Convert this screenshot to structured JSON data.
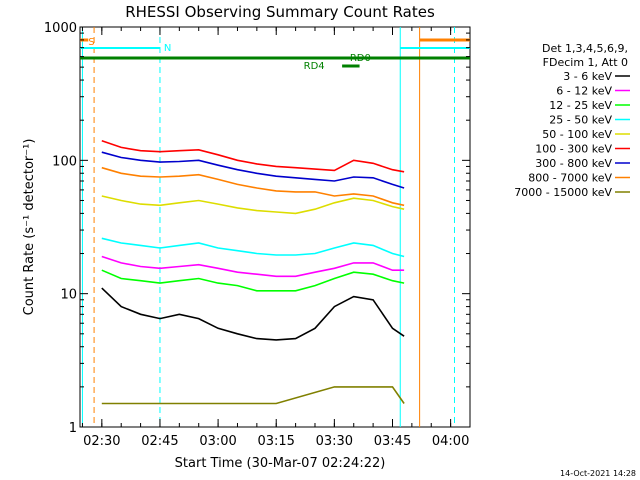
{
  "chart_data": {
    "type": "line",
    "title": "RHESSI Observing Summary Count Rates",
    "xlabel": "Start Time (30-Mar-07 02:24:22)",
    "ylabel": "Count Rate (s⁻¹ detector⁻¹)",
    "y_scale": "log",
    "ylim": [
      1,
      1000
    ],
    "xlim": [
      "02:24:22",
      "04:05:00"
    ],
    "x_ticks": [
      "02:30",
      "02:45",
      "03:00",
      "03:15",
      "03:30",
      "03:45",
      "04:00"
    ],
    "y_ticks": [
      "1",
      "10",
      "100",
      "1000"
    ],
    "timestamp": "14-Oct-2021 14:28",
    "legend": {
      "placement": "right",
      "header": [
        "Det 1,3,4,5,6,9,",
        "FDecim 1, Att 0"
      ]
    },
    "flags": [
      {
        "label": "S",
        "color": "#ff8000"
      },
      {
        "label": "N",
        "color": "#00ffff"
      },
      {
        "label": "RD0",
        "color": "#008000"
      },
      {
        "label": "RD4",
        "color": "#008000"
      }
    ],
    "series": [
      {
        "name": "3 - 6 keV",
        "color": "#000000",
        "x": [
          "02:30",
          "02:35",
          "02:40",
          "02:45",
          "02:50",
          "02:55",
          "03:00",
          "03:05",
          "03:10",
          "03:15",
          "03:20",
          "03:25",
          "03:30",
          "03:35",
          "03:40",
          "03:45",
          "03:48"
        ],
        "values": [
          11,
          8,
          7,
          6.5,
          7,
          6.5,
          5.5,
          5,
          4.6,
          4.5,
          4.6,
          5.5,
          8,
          9.5,
          9,
          5.5,
          4.8
        ]
      },
      {
        "name": "6 - 12 keV",
        "color": "#ff00ff",
        "x": [
          "02:30",
          "02:35",
          "02:40",
          "02:45",
          "02:50",
          "02:55",
          "03:00",
          "03:05",
          "03:10",
          "03:15",
          "03:20",
          "03:25",
          "03:30",
          "03:35",
          "03:40",
          "03:45",
          "03:48"
        ],
        "values": [
          19,
          17,
          16,
          15.5,
          16,
          16.5,
          15.5,
          14.5,
          14,
          13.5,
          13.5,
          14.5,
          15.5,
          17,
          17,
          15,
          15
        ]
      },
      {
        "name": "12 - 25 keV",
        "color": "#00ff00",
        "x": [
          "02:30",
          "02:35",
          "02:40",
          "02:45",
          "02:50",
          "02:55",
          "03:00",
          "03:05",
          "03:10",
          "03:15",
          "03:20",
          "03:25",
          "03:30",
          "03:35",
          "03:40",
          "03:45",
          "03:48"
        ],
        "values": [
          15,
          13,
          12.5,
          12,
          12.5,
          13,
          12,
          11.5,
          10.5,
          10.5,
          10.5,
          11.5,
          13,
          14.5,
          14,
          12.5,
          12
        ]
      },
      {
        "name": "25 - 50 keV",
        "color": "#00ffff",
        "x": [
          "02:30",
          "02:35",
          "02:40",
          "02:45",
          "02:50",
          "02:55",
          "03:00",
          "03:05",
          "03:10",
          "03:15",
          "03:20",
          "03:25",
          "03:30",
          "03:35",
          "03:40",
          "03:45",
          "03:48"
        ],
        "values": [
          26,
          24,
          23,
          22,
          23,
          24,
          22,
          21,
          20,
          19.5,
          19.5,
          20,
          22,
          24,
          23,
          20,
          19
        ]
      },
      {
        "name": "50 - 100 keV",
        "color": "#dddd00",
        "x": [
          "02:30",
          "02:35",
          "02:40",
          "02:45",
          "02:50",
          "02:55",
          "03:00",
          "03:05",
          "03:10",
          "03:15",
          "03:20",
          "03:25",
          "03:30",
          "03:35",
          "03:40",
          "03:45",
          "03:48"
        ],
        "values": [
          54,
          50,
          47,
          46,
          48,
          50,
          47,
          44,
          42,
          41,
          40,
          43,
          48,
          52,
          50,
          45,
          43
        ]
      },
      {
        "name": "100 - 300 keV",
        "color": "#ff0000",
        "x": [
          "02:30",
          "02:35",
          "02:40",
          "02:45",
          "02:50",
          "02:55",
          "03:00",
          "03:05",
          "03:10",
          "03:15",
          "03:20",
          "03:25",
          "03:30",
          "03:35",
          "03:40",
          "03:45",
          "03:48"
        ],
        "values": [
          140,
          125,
          118,
          116,
          118,
          120,
          110,
          100,
          94,
          90,
          88,
          86,
          84,
          100,
          95,
          85,
          82
        ]
      },
      {
        "name": "300 - 800 keV",
        "color": "#0000cc",
        "x": [
          "02:30",
          "02:35",
          "02:40",
          "02:45",
          "02:50",
          "02:55",
          "03:00",
          "03:05",
          "03:10",
          "03:15",
          "03:20",
          "03:25",
          "03:30",
          "03:35",
          "03:40",
          "03:45",
          "03:48"
        ],
        "values": [
          115,
          105,
          100,
          97,
          98,
          100,
          92,
          85,
          80,
          76,
          74,
          72,
          70,
          75,
          74,
          66,
          62
        ]
      },
      {
        "name": "800 - 7000 keV",
        "color": "#ff8000",
        "x": [
          "02:30",
          "02:35",
          "02:40",
          "02:45",
          "02:50",
          "02:55",
          "03:00",
          "03:05",
          "03:10",
          "03:15",
          "03:20",
          "03:25",
          "03:30",
          "03:35",
          "03:40",
          "03:45",
          "03:48"
        ],
        "values": [
          88,
          80,
          76,
          75,
          76,
          78,
          72,
          66,
          62,
          59,
          58,
          58,
          54,
          56,
          54,
          48,
          46
        ]
      },
      {
        "name": "7000 - 15000 keV",
        "color": "#808000",
        "x": [
          "02:30",
          "02:45",
          "03:00",
          "03:15",
          "03:30",
          "03:45",
          "03:48"
        ],
        "values": [
          1.5,
          1.5,
          1.5,
          1.5,
          2,
          2,
          1.5
        ]
      }
    ]
  }
}
